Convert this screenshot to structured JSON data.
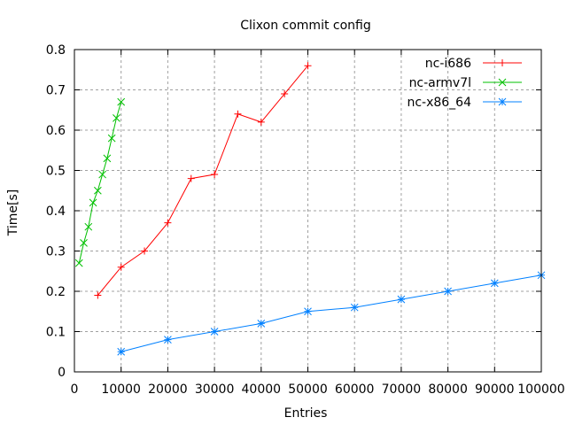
{
  "chart_data": {
    "type": "line",
    "title": "Clixon commit config",
    "xlabel": "Entries",
    "ylabel": "Time[s]",
    "xlim": [
      0,
      100000
    ],
    "ylim": [
      0,
      0.8
    ],
    "grid": true,
    "legend_position": "top-right",
    "xticks": [
      "0",
      "10000",
      "20000",
      "30000",
      "40000",
      "50000",
      "60000",
      "70000",
      "80000",
      "90000",
      "100000"
    ],
    "yticks": [
      "0",
      "0.1",
      "0.2",
      "0.3",
      "0.4",
      "0.5",
      "0.6",
      "0.7",
      "0.8"
    ],
    "series": [
      {
        "name": "nc-i686",
        "color": "#ff0000",
        "marker": "plus",
        "x": [
          5000,
          10000,
          15000,
          20000,
          25000,
          30000,
          35000,
          40000,
          45000,
          50000
        ],
        "y": [
          0.19,
          0.26,
          0.3,
          0.37,
          0.48,
          0.49,
          0.64,
          0.62,
          0.69,
          0.76
        ]
      },
      {
        "name": "nc-armv7l",
        "color": "#00c000",
        "marker": "cross",
        "x": [
          1000,
          2000,
          3000,
          4000,
          5000,
          6000,
          7000,
          8000,
          9000,
          10000
        ],
        "y": [
          0.27,
          0.32,
          0.36,
          0.42,
          0.45,
          0.49,
          0.53,
          0.58,
          0.63,
          0.67
        ]
      },
      {
        "name": "nc-x86_64",
        "color": "#0080ff",
        "marker": "star",
        "x": [
          10000,
          20000,
          30000,
          40000,
          50000,
          60000,
          70000,
          80000,
          90000,
          100000
        ],
        "y": [
          0.05,
          0.08,
          0.1,
          0.12,
          0.15,
          0.16,
          0.18,
          0.2,
          0.22,
          0.24
        ]
      }
    ]
  }
}
